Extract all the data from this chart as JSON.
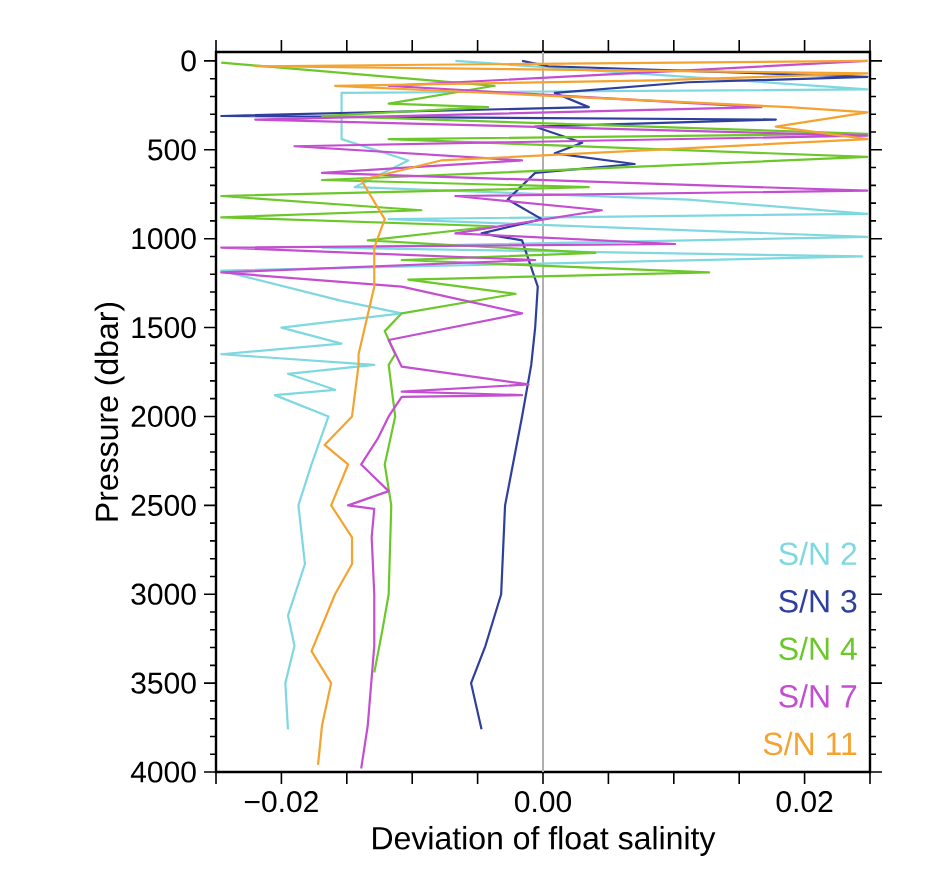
{
  "chart_data": {
    "type": "line",
    "xlabel": "Deviation of float salinity",
    "ylabel": "Pressure (dbar)",
    "xlim": [
      -0.025,
      0.025
    ],
    "ylim": [
      4000,
      -50
    ],
    "xticks": [
      {
        "value": -0.025,
        "label": null
      },
      {
        "value": -0.02,
        "label": "−0.02"
      },
      {
        "value": -0.015,
        "label": null
      },
      {
        "value": -0.01,
        "label": null
      },
      {
        "value": -0.005,
        "label": null
      },
      {
        "value": 0,
        "label": "0.00"
      },
      {
        "value": 0.005,
        "label": null
      },
      {
        "value": 0.01,
        "label": null
      },
      {
        "value": 0.015,
        "label": null
      },
      {
        "value": 0.02,
        "label": "0.02"
      },
      {
        "value": 0.025,
        "label": null
      }
    ],
    "yticks": [
      0,
      500,
      1000,
      1500,
      2000,
      2500,
      3000,
      3500,
      4000
    ],
    "grid": false,
    "legend": "bottom right",
    "marker": "none",
    "line_style": "solid",
    "ref_lines": [
      {
        "axis": "x",
        "value": 0,
        "color": "#b0b0b0"
      }
    ],
    "series": [
      {
        "name": "S/N 2",
        "color": "#7fd8e0",
        "x": [
          -0.0067,
          0.0248,
          -0.0154,
          -0.0154,
          -0.0103,
          -0.0144,
          0.0111,
          0.0248,
          -0.0118,
          0.0248,
          -0.0169,
          0.0244,
          -0.0246,
          -0.0154,
          -0.0108,
          -0.02,
          -0.0154,
          -0.0246,
          -0.0129,
          -0.0195,
          -0.0159,
          -0.0205,
          -0.0164,
          -0.0177,
          -0.0187,
          -0.0182,
          -0.0195,
          -0.019,
          -0.0197,
          -0.0195
        ],
        "values": [
          0,
          160,
          180,
          440,
          560,
          710,
          780,
          860,
          890,
          990,
          1050,
          1100,
          1180,
          1350,
          1420,
          1500,
          1590,
          1650,
          1710,
          1760,
          1850,
          1880,
          2000,
          2270,
          2500,
          2830,
          3120,
          3290,
          3500,
          3760
        ]
      },
      {
        "name": "S/N 3",
        "color": "#2e3f9e",
        "x": [
          -0.0016,
          0.0004,
          0.0248,
          0.0111,
          0.0009,
          0.0035,
          -0.0246,
          0.0178,
          -0.0006,
          0.003,
          0.0009,
          0.007,
          -0.0006,
          -0.0027,
          -0.0001,
          -0.0047,
          -0.0016,
          -0.0004,
          -0.0006,
          -0.0009,
          -0.0016,
          -0.0029,
          -0.0032,
          -0.0044,
          -0.0055,
          -0.0047
        ],
        "values": [
          0,
          30,
          90,
          120,
          180,
          260,
          310,
          330,
          370,
          460,
          520,
          580,
          630,
          780,
          890,
          970,
          1010,
          1270,
          1500,
          1710,
          2000,
          2500,
          3000,
          3290,
          3500,
          3760
        ]
      },
      {
        "name": "S/N 4",
        "color": "#6cc82a",
        "x": [
          -0.0246,
          -0.0037,
          -0.0118,
          -0.0042,
          -0.0169,
          0.0248,
          -0.0118,
          0.0248,
          -0.0169,
          0.0035,
          -0.0246,
          -0.0093,
          -0.0246,
          -0.0037,
          -0.0134,
          0.004,
          -0.0108,
          0.0127,
          -0.0103,
          -0.0021,
          -0.0108,
          -0.0121,
          -0.0113,
          -0.0118,
          -0.0113,
          -0.0121,
          -0.0116,
          -0.0118,
          -0.0123,
          -0.0129
        ],
        "values": [
          10,
          140,
          240,
          260,
          310,
          410,
          440,
          540,
          670,
          710,
          760,
          840,
          880,
          930,
          1010,
          1080,
          1120,
          1190,
          1230,
          1310,
          1420,
          1520,
          1650,
          1710,
          2000,
          2270,
          2500,
          3000,
          3210,
          3440
        ]
      },
      {
        "name": "S/N 7",
        "color": "#c34fd0",
        "x": [
          0.0248,
          -0.0118,
          0.0167,
          -0.022,
          0.0248,
          -0.019,
          -0.0016,
          -0.0169,
          0.0248,
          -0.0067,
          0.0045,
          -0.0067,
          0.0101,
          -0.0246,
          -0.0006,
          -0.0246,
          -0.0108,
          -0.0016,
          -0.0118,
          -0.0108,
          -0.0011,
          -0.0108,
          -0.0016,
          -0.0108,
          -0.0118,
          -0.0126,
          -0.0139,
          -0.0118,
          -0.0149,
          -0.0129,
          -0.0131,
          -0.0129,
          -0.0129,
          -0.0134,
          -0.0139
        ],
        "values": [
          0,
          140,
          260,
          330,
          420,
          480,
          560,
          630,
          730,
          760,
          840,
          970,
          1030,
          1050,
          1120,
          1190,
          1270,
          1420,
          1570,
          1720,
          1820,
          1860,
          1880,
          1890,
          2000,
          2120,
          2270,
          2420,
          2500,
          2520,
          2680,
          3000,
          3290,
          3740,
          3980
        ]
      },
      {
        "name": "S/N 11",
        "color": "#f5a330",
        "x": [
          0.0248,
          -0.022,
          0.0248,
          0.0086,
          -0.0159,
          0.0188,
          0.0248,
          0.0178,
          0.0248,
          -0.0078,
          -0.0139,
          -0.0121,
          -0.0129,
          -0.0129,
          -0.0141,
          -0.0141,
          -0.0146,
          -0.0167,
          -0.0149,
          -0.0162,
          -0.0146,
          -0.0146,
          -0.0159,
          -0.0177,
          -0.0162,
          -0.0169,
          -0.0172
        ],
        "values": [
          0,
          30,
          70,
          110,
          140,
          260,
          290,
          370,
          440,
          560,
          670,
          890,
          1050,
          1270,
          1650,
          1710,
          2000,
          2160,
          2270,
          2500,
          2680,
          2830,
          3000,
          3320,
          3500,
          3740,
          3960
        ]
      }
    ]
  }
}
